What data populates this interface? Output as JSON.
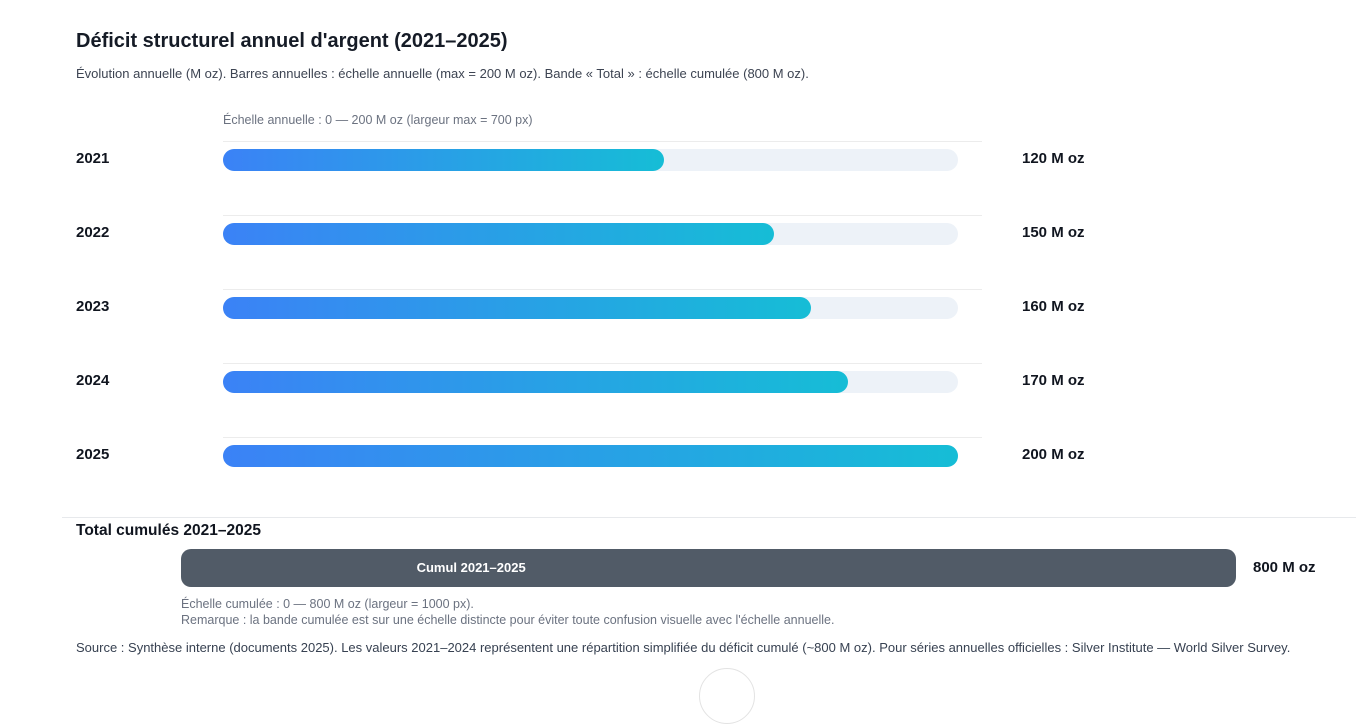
{
  "header": {
    "title": "Déficit structurel annuel d'argent (2021–2025)",
    "subtitle": "Évolution annuelle (M oz). Barres annuelles : échelle annuelle (max = 200 M oz). Bande « Total » : échelle cumulée (800 M oz)."
  },
  "annual_chart": {
    "scale_label": "Échelle annuelle : 0 — 200 M oz (largeur max = 700 px)",
    "scale_max": 200,
    "rows": [
      {
        "year": "2021",
        "value": 120,
        "value_label": "120 M oz"
      },
      {
        "year": "2022",
        "value": 150,
        "value_label": "150 M oz"
      },
      {
        "year": "2023",
        "value": 160,
        "value_label": "160 M oz"
      },
      {
        "year": "2024",
        "value": 170,
        "value_label": "170 M oz"
      },
      {
        "year": "2025",
        "value": 200,
        "value_label": "200 M oz"
      }
    ]
  },
  "total_section": {
    "heading": "Total cumulés 2021–2025",
    "band_label": "Cumul 2021–2025",
    "band_value_label": "800 M oz",
    "scale_note": "Échelle cumulée : 0 — 800 M oz (largeur = 1000 px).",
    "remark": "Remarque : la bande cumulée est sur une échelle distincte pour éviter toute confusion visuelle avec l'échelle annuelle."
  },
  "footer": {
    "source": "Source : Synthèse interne (documents 2025). Les valeurs 2021–2024 représentent une répartition simplifiée du déficit cumulé (~800 M oz). Pour séries annuelles officielles : Silver Institute — World Silver Survey."
  },
  "colors": {
    "bar_gradient_from": "#3b82f6",
    "bar_gradient_to": "#16bdd6",
    "track": "#edf2f8",
    "cumulative_band": "#515b67"
  },
  "chart_data": {
    "type": "bar",
    "orientation": "horizontal",
    "title": "Déficit structurel annuel d'argent (2021–2025)",
    "categories": [
      "2021",
      "2022",
      "2023",
      "2024",
      "2025"
    ],
    "values": [
      120,
      150,
      160,
      170,
      200
    ],
    "unit": "M oz",
    "xlabel": "",
    "ylabel": "",
    "xlim": [
      0,
      200
    ],
    "grid": false,
    "legend": false,
    "data_labels": [
      "120 M oz",
      "150 M oz",
      "160 M oz",
      "170 M oz",
      "200 M oz"
    ],
    "cumulative_band": {
      "label": "Cumul 2021–2025",
      "value": 800,
      "scale_max": 800,
      "value_label": "800 M oz"
    }
  }
}
